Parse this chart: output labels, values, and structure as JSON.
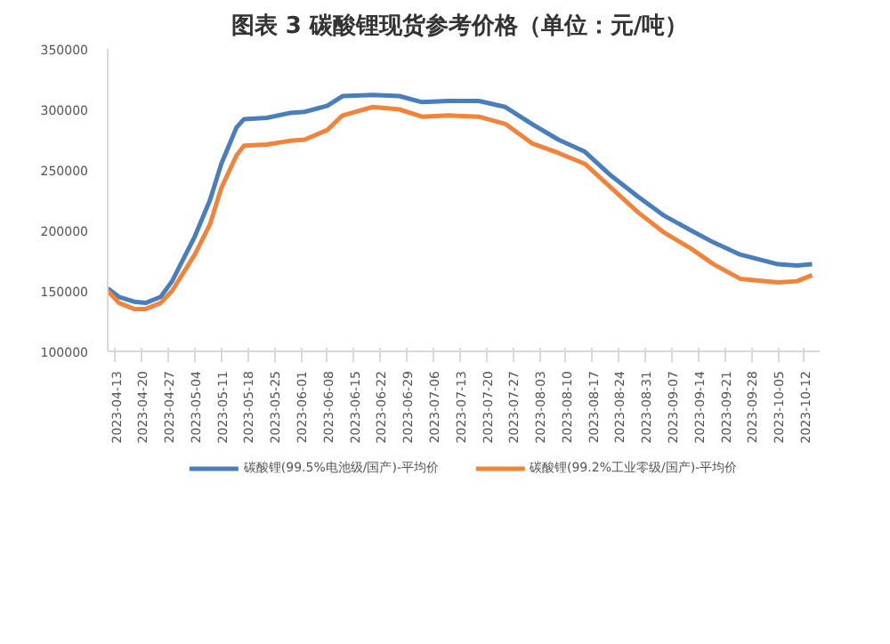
{
  "chart_data": {
    "type": "line",
    "title": "图表 3  碳酸锂现货参考价格（单位：元/吨）",
    "x": [
      "2023-04-11",
      "2023-04-14",
      "2023-04-18",
      "2023-04-21",
      "2023-04-25",
      "2023-04-28",
      "2023-05-04",
      "2023-05-08",
      "2023-05-11",
      "2023-05-15",
      "2023-05-17",
      "2023-05-23",
      "2023-05-29",
      "2023-06-02",
      "2023-06-08",
      "2023-06-12",
      "2023-06-20",
      "2023-06-27",
      "2023-07-03",
      "2023-07-10",
      "2023-07-18",
      "2023-07-25",
      "2023-08-01",
      "2023-08-08",
      "2023-08-15",
      "2023-08-22",
      "2023-08-29",
      "2023-09-05",
      "2023-09-12",
      "2023-09-18",
      "2023-09-25",
      "2023-10-05",
      "2023-10-10",
      "2023-10-14"
    ],
    "series": [
      {
        "name": "碳酸锂(99.5%电池级/国产)-平均价",
        "color": "#4a7ebb",
        "values": [
          152000,
          145000,
          141000,
          140000,
          145000,
          158000,
          195000,
          225000,
          255000,
          285000,
          292000,
          293000,
          297000,
          298000,
          303000,
          311000,
          312000,
          311000,
          306000,
          307000,
          307000,
          302000,
          288000,
          275000,
          265000,
          245000,
          228000,
          212000,
          200000,
          190000,
          180000,
          172000,
          171000,
          172000
        ]
      },
      {
        "name": "碳酸锂(99.2%工业零级/国产)-平均价",
        "color": "#f0843c",
        "values": [
          150000,
          140000,
          135000,
          135000,
          140000,
          150000,
          180000,
          205000,
          235000,
          262000,
          270000,
          271000,
          274000,
          275000,
          283000,
          295000,
          302000,
          300000,
          294000,
          295000,
          294000,
          288000,
          272000,
          264000,
          255000,
          235000,
          215000,
          198000,
          185000,
          172000,
          160000,
          157000,
          158000,
          163000
        ]
      }
    ],
    "xlim": [
      "2023-04-11",
      "2023-10-16"
    ],
    "xticks": [
      "2023-04-13",
      "2023-04-20",
      "2023-04-27",
      "2023-05-04",
      "2023-05-11",
      "2023-05-18",
      "2023-05-25",
      "2023-06-01",
      "2023-06-08",
      "2023-06-15",
      "2023-06-22",
      "2023-06-29",
      "2023-07-06",
      "2023-07-13",
      "2023-07-20",
      "2023-07-27",
      "2023-08-03",
      "2023-08-10",
      "2023-08-17",
      "2023-08-24",
      "2023-08-31",
      "2023-09-07",
      "2023-09-14",
      "2023-09-21",
      "2023-09-28",
      "2023-10-05",
      "2023-10-12"
    ],
    "ylim": [
      100000,
      350000
    ],
    "yticks": [
      100000,
      150000,
      200000,
      250000,
      300000,
      350000
    ],
    "grid": false,
    "legend": "bottom",
    "marker": "none",
    "line_style": "solid"
  }
}
